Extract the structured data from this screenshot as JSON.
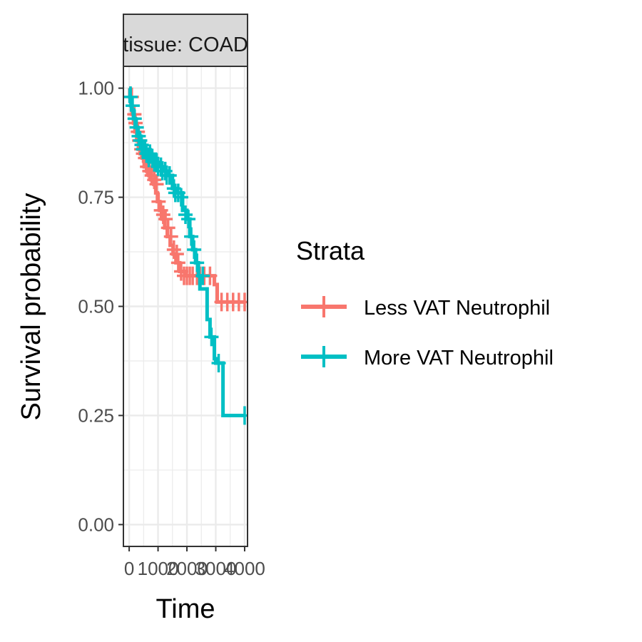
{
  "chart_data": {
    "type": "line",
    "subtype": "kaplan-meier",
    "facet_label": "tissue: COAD",
    "xlabel": "Time",
    "ylabel": "Survival probability",
    "xlim": [
      -200,
      4100
    ],
    "ylim": [
      -0.05,
      1.05
    ],
    "x_ticks": [
      0,
      1000,
      2000,
      3000,
      4000
    ],
    "x_tick_labels": [
      "0",
      "1000",
      "2000",
      "3000",
      "4000"
    ],
    "y_ticks": [
      0,
      0.25,
      0.5,
      0.75,
      1.0
    ],
    "y_tick_labels": [
      "0.00",
      "0.25",
      "0.50",
      "0.75",
      "1.00"
    ],
    "grid": true,
    "legend": {
      "title": "Strata",
      "position": "right"
    },
    "series": [
      {
        "name": "Less VAT Neutrophil",
        "color": "#F8766D",
        "steps": [
          [
            0,
            1.0
          ],
          [
            20,
            0.98
          ],
          [
            60,
            0.96
          ],
          [
            100,
            0.94
          ],
          [
            150,
            0.92
          ],
          [
            200,
            0.9
          ],
          [
            260,
            0.88
          ],
          [
            320,
            0.86
          ],
          [
            380,
            0.85
          ],
          [
            450,
            0.84
          ],
          [
            520,
            0.82
          ],
          [
            600,
            0.81
          ],
          [
            680,
            0.8
          ],
          [
            760,
            0.79
          ],
          [
            850,
            0.78
          ],
          [
            920,
            0.76
          ],
          [
            980,
            0.74
          ],
          [
            1060,
            0.72
          ],
          [
            1140,
            0.7
          ],
          [
            1230,
            0.68
          ],
          [
            1320,
            0.66
          ],
          [
            1420,
            0.64
          ],
          [
            1520,
            0.62
          ],
          [
            1620,
            0.6
          ],
          [
            1750,
            0.58
          ],
          [
            1950,
            0.57
          ],
          [
            2250,
            0.57
          ],
          [
            2950,
            0.55
          ],
          [
            3050,
            0.51
          ],
          [
            4000,
            0.51
          ]
        ],
        "censored": [
          [
            90,
            0.98
          ],
          [
            180,
            0.94
          ],
          [
            220,
            0.92
          ],
          [
            300,
            0.9
          ],
          [
            350,
            0.88
          ],
          [
            420,
            0.86
          ],
          [
            480,
            0.85
          ],
          [
            550,
            0.84
          ],
          [
            620,
            0.82
          ],
          [
            700,
            0.81
          ],
          [
            780,
            0.8
          ],
          [
            870,
            0.79
          ],
          [
            950,
            0.78
          ],
          [
            1020,
            0.74
          ],
          [
            1100,
            0.72
          ],
          [
            1180,
            0.71
          ],
          [
            1260,
            0.7
          ],
          [
            1350,
            0.68
          ],
          [
            1450,
            0.66
          ],
          [
            1550,
            0.63
          ],
          [
            1650,
            0.62
          ],
          [
            1700,
            0.6
          ],
          [
            1800,
            0.58
          ],
          [
            1900,
            0.57
          ],
          [
            2000,
            0.57
          ],
          [
            2100,
            0.57
          ],
          [
            2200,
            0.57
          ],
          [
            2350,
            0.57
          ],
          [
            2450,
            0.57
          ],
          [
            2600,
            0.57
          ],
          [
            2800,
            0.57
          ],
          [
            3200,
            0.51
          ],
          [
            3400,
            0.51
          ],
          [
            3600,
            0.51
          ],
          [
            3800,
            0.51
          ],
          [
            4000,
            0.51
          ]
        ]
      },
      {
        "name": "More VAT Neutrophil",
        "color": "#00BFC4",
        "steps": [
          [
            0,
            1.0
          ],
          [
            30,
            0.97
          ],
          [
            80,
            0.95
          ],
          [
            150,
            0.93
          ],
          [
            220,
            0.91
          ],
          [
            300,
            0.89
          ],
          [
            400,
            0.87
          ],
          [
            500,
            0.86
          ],
          [
            620,
            0.85
          ],
          [
            750,
            0.84
          ],
          [
            900,
            0.83
          ],
          [
            1050,
            0.82
          ],
          [
            1200,
            0.81
          ],
          [
            1350,
            0.8
          ],
          [
            1500,
            0.77
          ],
          [
            1650,
            0.76
          ],
          [
            1850,
            0.72
          ],
          [
            2000,
            0.7
          ],
          [
            2100,
            0.66
          ],
          [
            2200,
            0.63
          ],
          [
            2300,
            0.6
          ],
          [
            2400,
            0.57
          ],
          [
            2450,
            0.54
          ],
          [
            2700,
            0.47
          ],
          [
            2800,
            0.43
          ],
          [
            2950,
            0.38
          ],
          [
            3000,
            0.37
          ],
          [
            3250,
            0.25
          ],
          [
            4000,
            0.25
          ]
        ],
        "censored": [
          [
            50,
            0.98
          ],
          [
            120,
            0.96
          ],
          [
            190,
            0.93
          ],
          [
            260,
            0.91
          ],
          [
            330,
            0.89
          ],
          [
            380,
            0.88
          ],
          [
            430,
            0.87
          ],
          [
            470,
            0.86
          ],
          [
            550,
            0.86
          ],
          [
            600,
            0.85
          ],
          [
            680,
            0.84
          ],
          [
            720,
            0.85
          ],
          [
            800,
            0.84
          ],
          [
            870,
            0.83
          ],
          [
            950,
            0.83
          ],
          [
            1000,
            0.82
          ],
          [
            1100,
            0.82
          ],
          [
            1150,
            0.81
          ],
          [
            1250,
            0.81
          ],
          [
            1300,
            0.8
          ],
          [
            1400,
            0.8
          ],
          [
            1550,
            0.77
          ],
          [
            1600,
            0.76
          ],
          [
            1700,
            0.76
          ],
          [
            1800,
            0.75
          ],
          [
            1950,
            0.71
          ],
          [
            2050,
            0.7
          ],
          [
            2150,
            0.66
          ],
          [
            2250,
            0.63
          ],
          [
            2350,
            0.6
          ],
          [
            2550,
            0.57
          ],
          [
            2850,
            0.43
          ],
          [
            3100,
            0.37
          ],
          [
            4000,
            0.25
          ]
        ]
      }
    ]
  }
}
